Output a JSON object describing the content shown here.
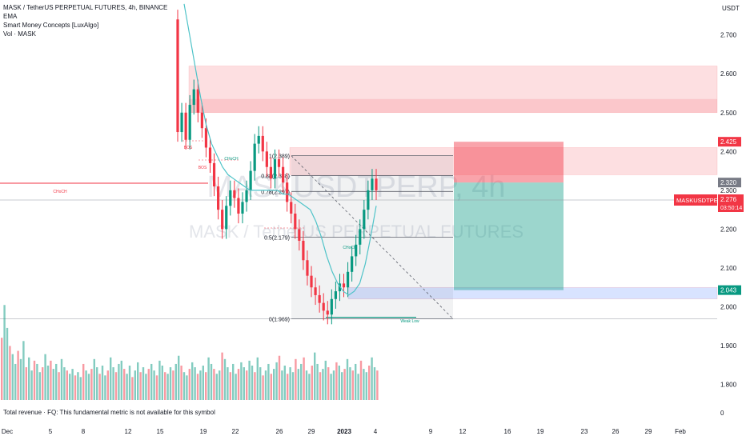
{
  "legend": {
    "symbol_line": "MASK / TetherUS PERPETUAL FUTURES, 4h, BINANCE",
    "indicator_1": "EMA",
    "indicator_2": "Smart Money Concepts [LuxAlgo]",
    "indicator_3": "Vol · MASK"
  },
  "footer_note": "Total revenue · FQ: This fundamental metric is not available for this symbol",
  "watermark": {
    "symbol": "MASKUSDTPERP, 4h",
    "description": "MASK / TetherUS PERPETUAL FUTURES"
  },
  "chart_data": {
    "type": "candlestick",
    "currency": "USDT",
    "y_ticks": [
      "2.700",
      "2.600",
      "2.500",
      "2.400",
      "2.300",
      "2.200",
      "2.100",
      "2.000",
      "1.900",
      "1.800"
    ],
    "volume_axis_label": "0",
    "x_ticks": [
      "Dec",
      "5",
      "8",
      "12",
      "15",
      "19",
      "22",
      "26",
      "29",
      "2023",
      "4",
      "9",
      "12",
      "16",
      "19",
      "23",
      "26",
      "29",
      "Feb"
    ],
    "ylim": [
      1.76,
      2.79
    ],
    "fib_levels": [
      {
        "label": "1(2.389)",
        "value": 2.389
      },
      {
        "label": "0.88(2.338)",
        "value": 2.338
      },
      {
        "label": "0.78(2.297)",
        "value": 2.297
      },
      {
        "label": "0.5(2.179)",
        "value": 2.179
      },
      {
        "label": "0(1.969)",
        "value": 1.969
      }
    ],
    "smc_labels": [
      "CHoCH",
      "BOS",
      "BOS",
      "CHoCH",
      "CHoCH",
      "Weak Low"
    ],
    "price_labels": [
      {
        "text": "2.425",
        "value": 2.425,
        "color": "#f23645"
      },
      {
        "text": "2.320",
        "value": 2.32,
        "color": "#787b86"
      },
      {
        "text": "2.043",
        "value": 2.043,
        "color": "#089981"
      }
    ],
    "current_price": {
      "symbol": "MASKUSDTPERP",
      "price": "2.276",
      "countdown": "03:50:14",
      "color": "#f23645"
    },
    "position": {
      "entry": 2.32,
      "stop": 2.425,
      "target": 2.043
    },
    "zones": [
      {
        "kind": "supply",
        "from": 2.5,
        "to": 2.62
      },
      {
        "kind": "supply",
        "from": 2.34,
        "to": 2.41
      },
      {
        "kind": "demand",
        "from": 2.02,
        "to": 2.05
      }
    ],
    "ema": [
      2.78,
      2.7,
      2.62,
      2.54,
      2.47,
      2.42,
      2.39,
      2.36,
      2.34,
      2.33,
      2.32,
      2.31,
      2.3,
      2.3,
      2.3,
      2.3,
      2.3,
      2.3,
      2.29,
      2.29,
      2.28,
      2.27,
      2.26,
      2.25,
      2.22,
      2.18,
      2.13,
      2.09,
      2.06,
      2.04,
      2.03,
      2.04,
      2.06,
      2.11,
      2.18,
      2.26
    ],
    "candles": [
      [
        2.74,
        2.45
      ],
      [
        2.45,
        2.5
      ],
      [
        2.5,
        2.43
      ],
      [
        2.43,
        2.52
      ],
      [
        2.52,
        2.56
      ],
      [
        2.56,
        2.5
      ],
      [
        2.5,
        2.46
      ],
      [
        2.46,
        2.41
      ],
      [
        2.41,
        2.37
      ],
      [
        2.37,
        2.31
      ],
      [
        2.31,
        2.25
      ],
      [
        2.25,
        2.2
      ],
      [
        2.2,
        2.26
      ],
      [
        2.26,
        2.3
      ],
      [
        2.3,
        2.28
      ],
      [
        2.28,
        2.24
      ],
      [
        2.24,
        2.27
      ],
      [
        2.27,
        2.3
      ],
      [
        2.3,
        2.35
      ],
      [
        2.35,
        2.42
      ],
      [
        2.42,
        2.44
      ],
      [
        2.44,
        2.4
      ],
      [
        2.4,
        2.36
      ],
      [
        2.36,
        2.33
      ],
      [
        2.33,
        2.38
      ],
      [
        2.38,
        2.36
      ],
      [
        2.36,
        2.32
      ],
      [
        2.32,
        2.27
      ],
      [
        2.27,
        2.24
      ],
      [
        2.24,
        2.2
      ],
      [
        2.2,
        2.17
      ],
      [
        2.17,
        2.12
      ],
      [
        2.12,
        2.08
      ],
      [
        2.08,
        2.05
      ],
      [
        2.05,
        2.03
      ],
      [
        2.03,
        2.01
      ],
      [
        2.01,
        1.99
      ],
      [
        1.99,
        1.98
      ],
      [
        1.98,
        2.02
      ],
      [
        2.02,
        2.04
      ],
      [
        2.04,
        2.06
      ],
      [
        2.06,
        2.05
      ],
      [
        2.05,
        2.09
      ],
      [
        2.09,
        2.13
      ],
      [
        2.13,
        2.16
      ],
      [
        2.16,
        2.2
      ],
      [
        2.2,
        2.25
      ],
      [
        2.25,
        2.3
      ],
      [
        2.3,
        2.33
      ],
      [
        2.33,
        2.3
      ]
    ],
    "volume": [
      38,
      58,
      44,
      33,
      28,
      22,
      30,
      25,
      36,
      20,
      26,
      18,
      24,
      22,
      17,
      20,
      28,
      21,
      24,
      19,
      22,
      17,
      25,
      20,
      18,
      16,
      19,
      15,
      17,
      14,
      22,
      18,
      16,
      19,
      25,
      20,
      16,
      21,
      15,
      18,
      26,
      20,
      17,
      22,
      24,
      19,
      16,
      21,
      14,
      18,
      23,
      17,
      20,
      16,
      19,
      22,
      18,
      15,
      24,
      21,
      17,
      16,
      20,
      18,
      22,
      27,
      21,
      17,
      15,
      19,
      23,
      20,
      16,
      18,
      21,
      17,
      26,
      22,
      19,
      16,
      18,
      29,
      25,
      20,
      17,
      22,
      16,
      19,
      23,
      20,
      18,
      24,
      21,
      17,
      26,
      20,
      15,
      18,
      22,
      16,
      19,
      23,
      27,
      18,
      21,
      16,
      20,
      17,
      25,
      19,
      22,
      26,
      18,
      16,
      21,
      29,
      22,
      17,
      19,
      24,
      20,
      16,
      18,
      23,
      21,
      17,
      19,
      25,
      20,
      18,
      22,
      16,
      24,
      19,
      17,
      21,
      26,
      20,
      18
    ]
  }
}
